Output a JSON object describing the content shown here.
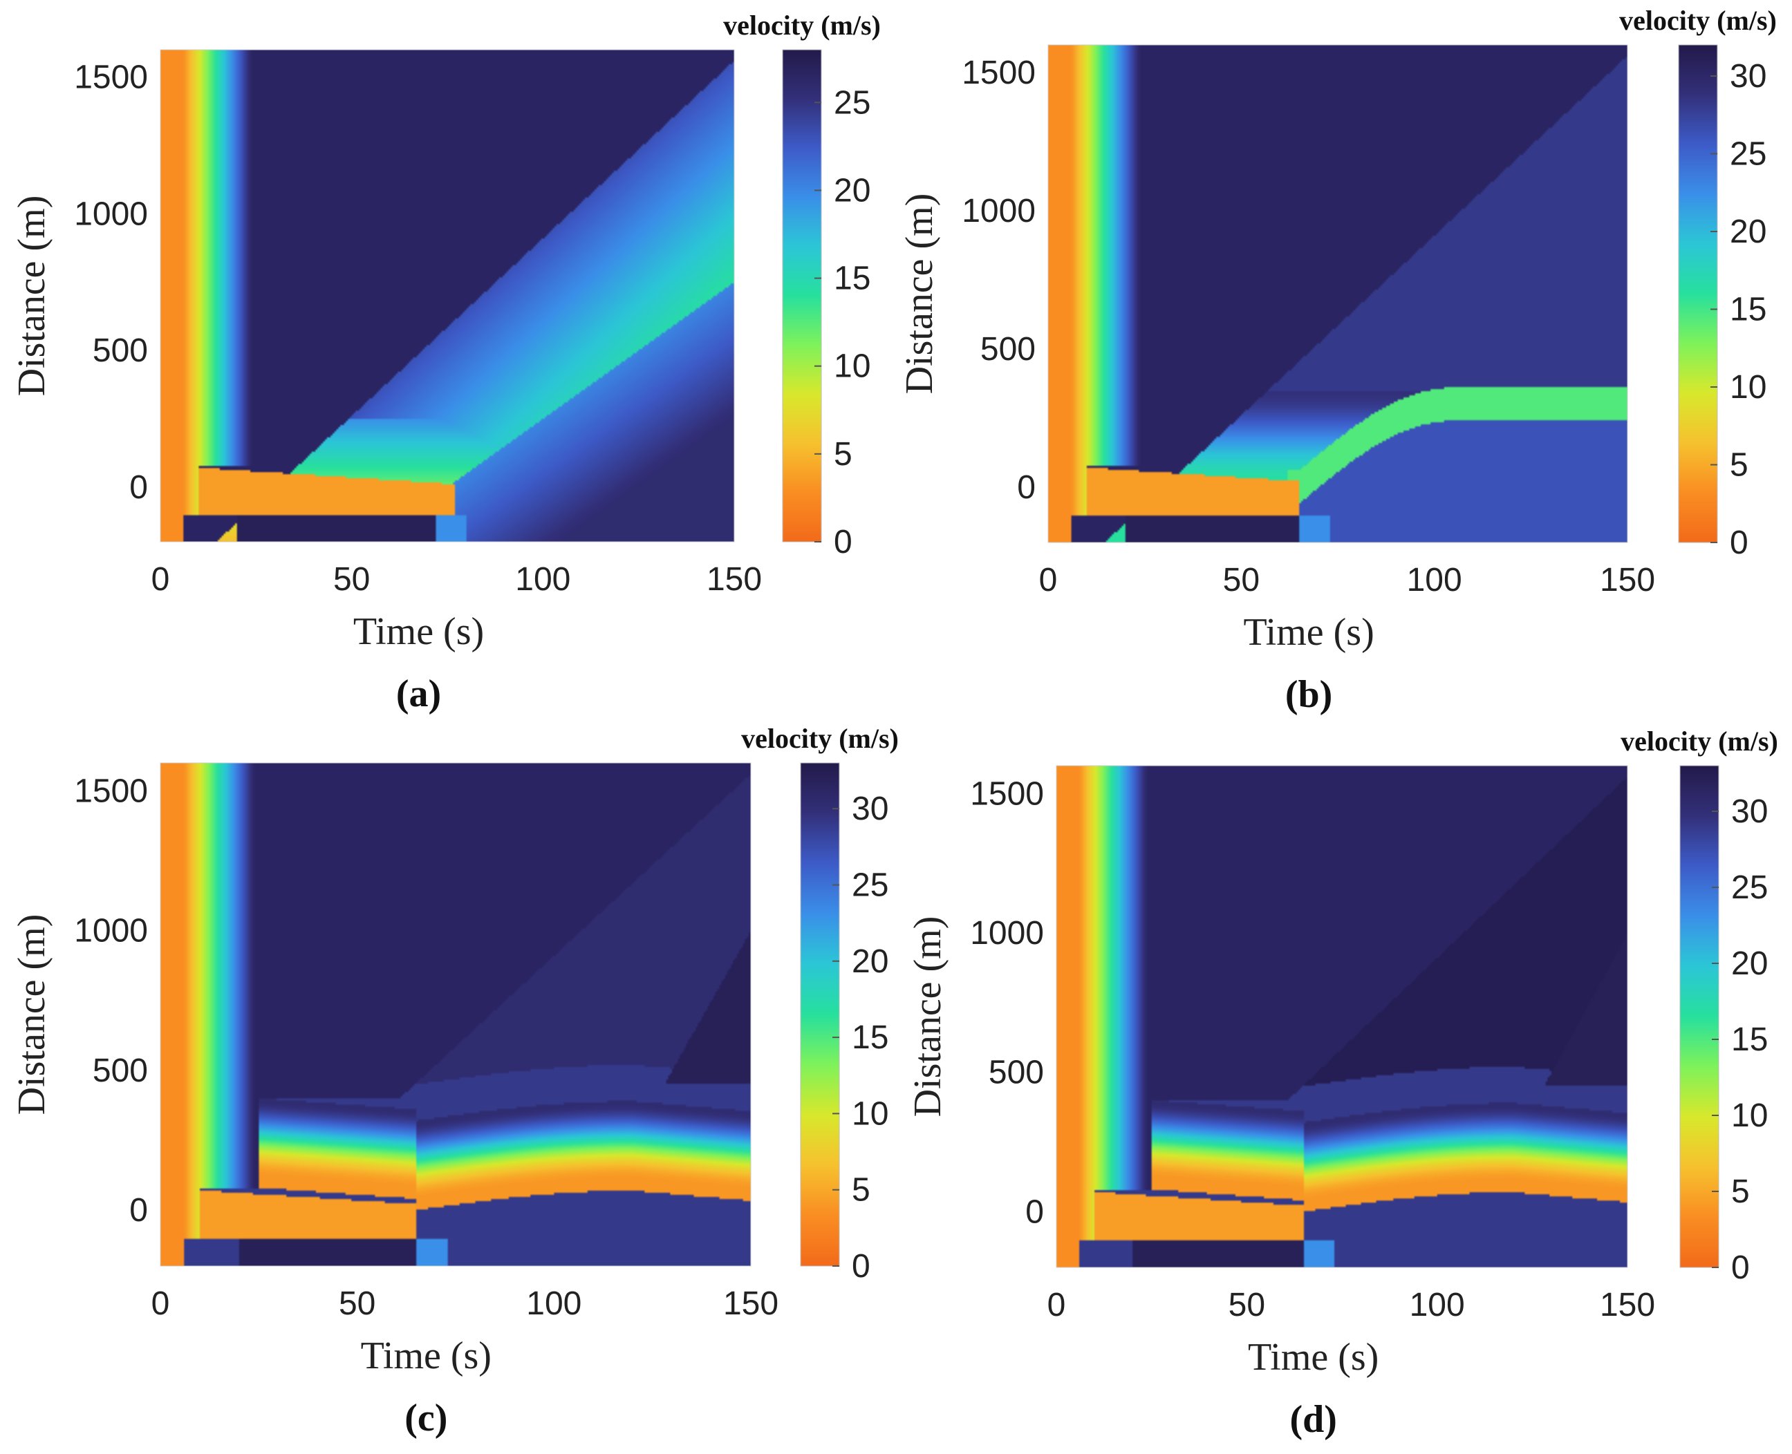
{
  "figure": {
    "description_labels": [
      "(a)",
      "(b)",
      "(c)",
      "(d)"
    ]
  },
  "chart_data": [
    {
      "type": "heatmap",
      "panel_label": "(a)",
      "xlabel": "Time (s)",
      "ylabel": "Distance (m)",
      "xlim": [
        0,
        150
      ],
      "ylim": [
        -200,
        1600
      ],
      "xticks": [
        0,
        50,
        100,
        150
      ],
      "yticks": [
        0,
        500,
        1000,
        1500
      ],
      "colorbar": {
        "title": "velocity (m/s)",
        "range": [
          0,
          28
        ],
        "ticks": [
          0,
          5,
          10,
          15,
          20,
          25
        ]
      },
      "regime": "a"
    },
    {
      "type": "heatmap",
      "panel_label": "(b)",
      "xlabel": "Time (s)",
      "ylabel": "Distance (m)",
      "xlim": [
        0,
        150
      ],
      "ylim": [
        -200,
        1600
      ],
      "xticks": [
        0,
        50,
        100,
        150
      ],
      "yticks": [
        0,
        500,
        1000,
        1500
      ],
      "colorbar": {
        "title": "velocity (m/s)",
        "range": [
          0,
          32
        ],
        "ticks": [
          0,
          5,
          10,
          15,
          20,
          25,
          30
        ]
      },
      "regime": "b"
    },
    {
      "type": "heatmap",
      "panel_label": "(c)",
      "xlabel": "Time (s)",
      "ylabel": "Distance (m)",
      "xlim": [
        0,
        150
      ],
      "ylim": [
        -200,
        1600
      ],
      "xticks": [
        0,
        50,
        100,
        150
      ],
      "yticks": [
        0,
        500,
        1000,
        1500
      ],
      "colorbar": {
        "title": "velocity (m/s)",
        "range": [
          0,
          33
        ],
        "ticks": [
          0,
          5,
          10,
          15,
          20,
          25,
          30
        ]
      },
      "regime": "c"
    },
    {
      "type": "heatmap",
      "panel_label": "(d)",
      "xlabel": "Time (s)",
      "ylabel": "Distance (m)",
      "xlim": [
        0,
        150
      ],
      "ylim": [
        -200,
        1600
      ],
      "xticks": [
        0,
        50,
        100,
        150
      ],
      "yticks": [
        0,
        500,
        1000,
        1500
      ],
      "colorbar": {
        "title": "velocity (m/s)",
        "range": [
          0,
          33
        ],
        "ticks": [
          0,
          5,
          10,
          15,
          20,
          25,
          30
        ]
      },
      "regime": "d"
    }
  ],
  "colormap": [
    "#f26a1a",
    "#f98d22",
    "#f6c12e",
    "#d8e82c",
    "#7ef25a",
    "#27e09d",
    "#2bc6d6",
    "#3a8fe8",
    "#3d5bc8",
    "#33307a",
    "#221a4a"
  ]
}
